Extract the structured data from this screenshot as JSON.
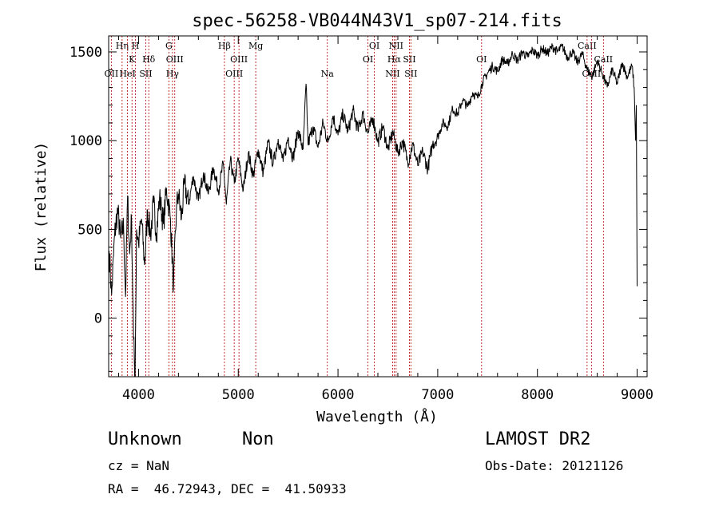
{
  "chart_data": {
    "type": "line",
    "title": "spec-56258-VB044N43V1_sp07-214.fits",
    "xlabel": "Wavelength (Å)",
    "ylabel": "Flux (relative)",
    "xlim": [
      3700,
      9100
    ],
    "ylim": [
      -330,
      1590
    ],
    "xticks": [
      {
        "value": 4000,
        "label": "4000"
      },
      {
        "value": 5000,
        "label": "5000"
      },
      {
        "value": 6000,
        "label": "6000"
      },
      {
        "value": 7000,
        "label": "7000"
      },
      {
        "value": 8000,
        "label": "8000"
      },
      {
        "value": 9000,
        "label": "9000"
      }
    ],
    "yticks": [
      {
        "value": 0,
        "label": "0"
      },
      {
        "value": 500,
        "label": "500"
      },
      {
        "value": 1000,
        "label": "1000"
      },
      {
        "value": 1500,
        "label": "1500"
      }
    ],
    "series": [
      {
        "color": "#000000",
        "points": [
          [
            3705,
            380
          ],
          [
            3730,
            130
          ],
          [
            3760,
            470
          ],
          [
            3790,
            610
          ],
          [
            3820,
            450
          ],
          [
            3850,
            520
          ],
          [
            3870,
            120
          ],
          [
            3890,
            690
          ],
          [
            3910,
            360
          ],
          [
            3930,
            560
          ],
          [
            3950,
            -120
          ],
          [
            3965,
            -330
          ],
          [
            3980,
            500
          ],
          [
            4000,
            420
          ],
          [
            4030,
            560
          ],
          [
            4060,
            300
          ],
          [
            4090,
            600
          ],
          [
            4120,
            470
          ],
          [
            4150,
            650
          ],
          [
            4180,
            480
          ],
          [
            4210,
            680
          ],
          [
            4250,
            530
          ],
          [
            4280,
            730
          ],
          [
            4320,
            560
          ],
          [
            4350,
            170
          ],
          [
            4380,
            620
          ],
          [
            4400,
            700
          ],
          [
            4430,
            560
          ],
          [
            4460,
            760
          ],
          [
            4500,
            640
          ],
          [
            4550,
            800
          ],
          [
            4600,
            660
          ],
          [
            4650,
            820
          ],
          [
            4700,
            700
          ],
          [
            4750,
            850
          ],
          [
            4800,
            720
          ],
          [
            4850,
            870
          ],
          [
            4880,
            640
          ],
          [
            4920,
            890
          ],
          [
            4960,
            760
          ],
          [
            5000,
            900
          ],
          [
            5050,
            720
          ],
          [
            5100,
            930
          ],
          [
            5150,
            800
          ],
          [
            5200,
            950
          ],
          [
            5250,
            820
          ],
          [
            5300,
            990
          ],
          [
            5350,
            870
          ],
          [
            5400,
            1010
          ],
          [
            5450,
            880
          ],
          [
            5500,
            1020
          ],
          [
            5550,
            900
          ],
          [
            5600,
            1060
          ],
          [
            5650,
            950
          ],
          [
            5680,
            1320
          ],
          [
            5700,
            980
          ],
          [
            5750,
            1080
          ],
          [
            5800,
            960
          ],
          [
            5850,
            1100
          ],
          [
            5900,
            990
          ],
          [
            5950,
            1140
          ],
          [
            6000,
            1030
          ],
          [
            6050,
            1150
          ],
          [
            6100,
            1050
          ],
          [
            6150,
            1170
          ],
          [
            6200,
            1060
          ],
          [
            6250,
            1150
          ],
          [
            6300,
            1040
          ],
          [
            6350,
            1130
          ],
          [
            6400,
            990
          ],
          [
            6450,
            1080
          ],
          [
            6500,
            950
          ],
          [
            6550,
            1050
          ],
          [
            6600,
            930
          ],
          [
            6650,
            1000
          ],
          [
            6700,
            880
          ],
          [
            6750,
            980
          ],
          [
            6800,
            860
          ],
          [
            6850,
            940
          ],
          [
            6900,
            840
          ],
          [
            6950,
            980
          ],
          [
            7000,
            1020
          ],
          [
            7050,
            1100
          ],
          [
            7100,
            1080
          ],
          [
            7150,
            1180
          ],
          [
            7200,
            1150
          ],
          [
            7250,
            1230
          ],
          [
            7300,
            1190
          ],
          [
            7350,
            1270
          ],
          [
            7400,
            1240
          ],
          [
            7450,
            1330
          ],
          [
            7500,
            1380
          ],
          [
            7550,
            1420
          ],
          [
            7600,
            1390
          ],
          [
            7650,
            1460
          ],
          [
            7700,
            1430
          ],
          [
            7750,
            1490
          ],
          [
            7800,
            1450
          ],
          [
            7850,
            1500
          ],
          [
            7900,
            1470
          ],
          [
            7950,
            1510
          ],
          [
            8000,
            1480
          ],
          [
            8050,
            1520
          ],
          [
            8100,
            1490
          ],
          [
            8150,
            1530
          ],
          [
            8200,
            1500
          ],
          [
            8250,
            1530
          ],
          [
            8300,
            1470
          ],
          [
            8350,
            1500
          ],
          [
            8400,
            1440
          ],
          [
            8450,
            1490
          ],
          [
            8500,
            1400
          ],
          [
            8550,
            1360
          ],
          [
            8600,
            1450
          ],
          [
            8650,
            1380
          ],
          [
            8700,
            1300
          ],
          [
            8750,
            1400
          ],
          [
            8800,
            1320
          ],
          [
            8850,
            1440
          ],
          [
            8900,
            1360
          ],
          [
            8950,
            1420
          ],
          [
            8970,
            1300
          ],
          [
            8985,
            1000
          ],
          [
            8992,
            1200
          ],
          [
            9000,
            180
          ]
        ]
      }
    ],
    "line_markers": [
      {
        "wave": 3727,
        "label": "OII",
        "row": 3
      },
      {
        "wave": 3835,
        "label": "Hη",
        "row": 1
      },
      {
        "wave": 3889,
        "label": "HeI",
        "row": 3
      },
      {
        "wave": 3934,
        "label": "K",
        "row": 2
      },
      {
        "wave": 3969,
        "label": "H",
        "row": 1
      },
      {
        "wave": 4072,
        "label": "SII",
        "row": 3
      },
      {
        "wave": 4102,
        "label": "Hδ",
        "row": 2
      },
      {
        "wave": 4304,
        "label": "G",
        "row": 1
      },
      {
        "wave": 4340,
        "label": "Hγ",
        "row": 3
      },
      {
        "wave": 4363,
        "label": "OIII",
        "row": 2
      },
      {
        "wave": 4861,
        "label": "Hβ",
        "row": 1
      },
      {
        "wave": 4959,
        "label": "OIII",
        "row": 3
      },
      {
        "wave": 5007,
        "label": "OIII",
        "row": 2
      },
      {
        "wave": 5175,
        "label": "Mg",
        "row": 1
      },
      {
        "wave": 5893,
        "label": "Na",
        "row": 3
      },
      {
        "wave": 6300,
        "label": "OI",
        "row": 2
      },
      {
        "wave": 6364,
        "label": "OI",
        "row": 1
      },
      {
        "wave": 6548,
        "label": "NII",
        "row": 3
      },
      {
        "wave": 6563,
        "label": "Hα",
        "row": 2
      },
      {
        "wave": 6583,
        "label": "NII",
        "row": 1
      },
      {
        "wave": 6716,
        "label": "SII",
        "row": 2
      },
      {
        "wave": 6731,
        "label": "SII",
        "row": 3
      },
      {
        "wave": 7440,
        "label": "OI",
        "row": 2
      },
      {
        "wave": 8498,
        "label": "CaII",
        "row": 1
      },
      {
        "wave": 8542,
        "label": "CaII",
        "row": 3
      },
      {
        "wave": 8662,
        "label": "CaII",
        "row": 2
      }
    ]
  },
  "info": {
    "class": "Unknown",
    "subclass": "Non",
    "cz": "cz = NaN",
    "radec": "RA =  46.72943, DEC =  41.50933",
    "survey": "LAMOST DR2",
    "obs_date": "Obs-Date: 20121126"
  },
  "colors": {
    "spectrum": "#000000",
    "marker_line": "#b00000"
  }
}
